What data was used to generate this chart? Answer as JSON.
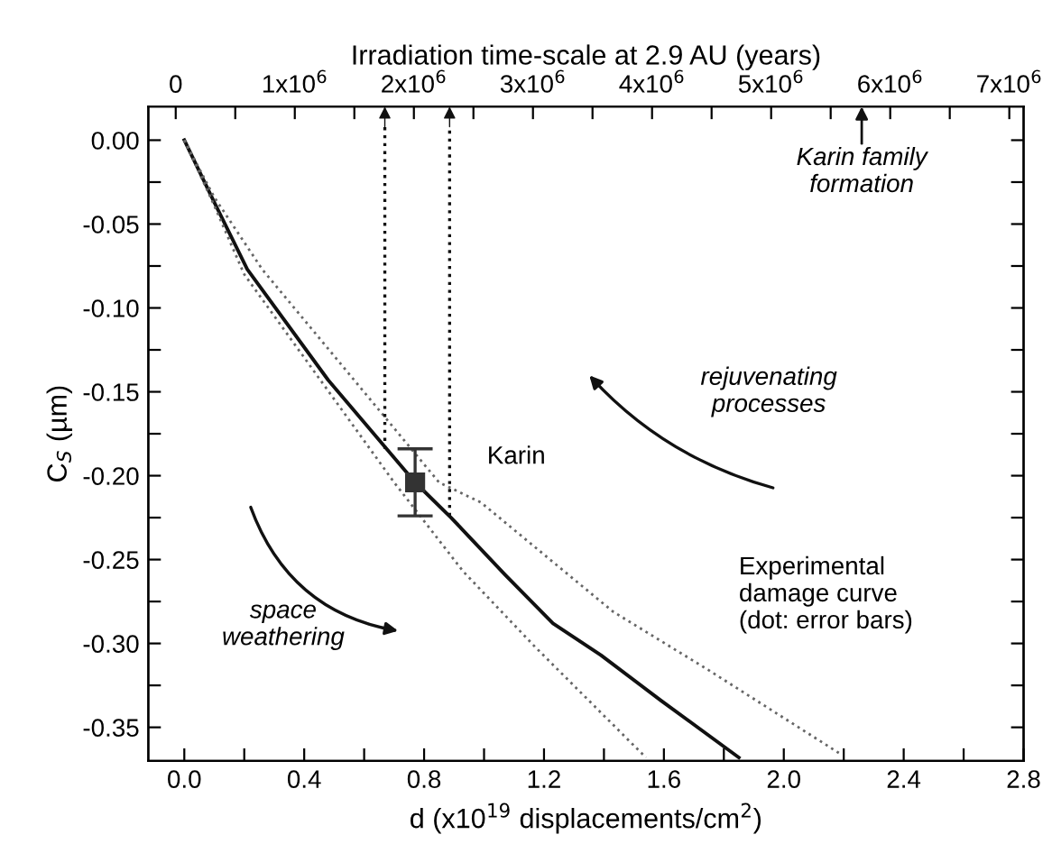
{
  "chart_data": {
    "type": "line",
    "xlabel": "d (x10$^{19}$ displacements/cm$^{2}$)",
    "ylabel": "C$_{S}$ (µm)",
    "x2label": "Irradiation time-scale at 2.9 AU (years)",
    "xlim": [
      -0.12,
      2.8
    ],
    "xticks": [
      {
        "value": 0,
        "label": "0.0"
      },
      {
        "value": 0.2,
        "label": null
      },
      0.4,
      {
        "value": 0.6,
        "label": null
      },
      0.8,
      {
        "value": 1.0,
        "label": null
      },
      1.2,
      {
        "value": 1.4,
        "label": null
      },
      1.6,
      {
        "value": 1.8,
        "label": null
      },
      {
        "value": 2,
        "label": "2.0"
      },
      {
        "value": 2.2,
        "label": null
      },
      2.4,
      {
        "value": 2.6,
        "label": null
      },
      2.8
    ],
    "x2lim": [
      -230000,
      7120000
    ],
    "x2ticks": [
      {
        "value": 0,
        "label": "0"
      },
      {
        "value": 500000,
        "label": null
      },
      {
        "value": 1000000,
        "label": "1x10$^{6}$"
      },
      {
        "value": 1500000,
        "label": null
      },
      {
        "value": 2000000,
        "label": "2x10$^{6}$"
      },
      {
        "value": 2500000,
        "label": null
      },
      {
        "value": 3000000,
        "label": "3x10$^{6}$"
      },
      {
        "value": 3500000,
        "label": null
      },
      {
        "value": 4000000,
        "label": "4x10$^{6}$"
      },
      {
        "value": 4500000,
        "label": null
      },
      {
        "value": 5000000,
        "label": "5x10$^{6}$"
      },
      {
        "value": 5500000,
        "label": null
      },
      {
        "value": 6000000,
        "label": "6x10$^{6}$"
      },
      {
        "value": 6500000,
        "label": null
      },
      {
        "value": 7000000,
        "label": "7x10$^{6}$"
      }
    ],
    "ylim": [
      -0.37,
      0.02
    ],
    "yticks": [
      {
        "value": 0.0,
        "label": "0.00"
      },
      {
        "value": -0.025,
        "label": null
      },
      {
        "value": -0.05,
        "label": "-0.05"
      },
      {
        "value": -0.075,
        "label": null
      },
      {
        "value": -0.1,
        "label": "-0.10"
      },
      {
        "value": -0.125,
        "label": null
      },
      {
        "value": -0.15,
        "label": "-0.15"
      },
      {
        "value": -0.175,
        "label": null
      },
      {
        "value": -0.2,
        "label": "-0.20"
      },
      {
        "value": -0.225,
        "label": null
      },
      {
        "value": -0.25,
        "label": "-0.25"
      },
      {
        "value": -0.275,
        "label": null
      },
      {
        "value": -0.3,
        "label": "-0.30"
      },
      {
        "value": -0.325,
        "label": null
      },
      {
        "value": -0.35,
        "label": "-0.35"
      }
    ],
    "grid": false,
    "legend": false,
    "series": [
      {
        "color": "#111111",
        "line_style": "solid",
        "x": [
          0.0,
          0.1,
          0.21,
          0.48,
          0.77,
          0.89,
          1.07,
          1.23,
          1.39,
          1.59,
          1.85
        ],
        "values": [
          0.0,
          -0.037,
          -0.077,
          -0.143,
          -0.204,
          -0.225,
          -0.259,
          -0.288,
          -0.307,
          -0.334,
          -0.368
        ]
      },
      {
        "color": "#666666",
        "line_style": "dotted",
        "x": [
          0.0,
          0.1,
          0.2,
          0.7,
          0.93,
          1.17,
          1.54
        ],
        "values": [
          0.0,
          -0.039,
          -0.08,
          -0.204,
          -0.257,
          -0.302,
          -0.368
        ]
      },
      {
        "color": "#666666",
        "line_style": "dotted",
        "x": [
          0.0,
          0.1,
          0.26,
          0.85,
          0.99,
          1.43,
          1.75,
          2.19
        ],
        "values": [
          0.0,
          -0.034,
          -0.077,
          -0.204,
          -0.216,
          -0.281,
          -0.316,
          -0.366
        ]
      },
      {
        "type": "scatter",
        "color": "#333333",
        "marker": "square",
        "x": [
          0.77
        ],
        "values": [
          -0.204
        ],
        "errors": [
          0.02
        ]
      }
    ],
    "ref_lines": [
      {
        "axis": "x2",
        "value": 1756000,
        "line_style": "dotted",
        "color": "#111111"
      },
      {
        "axis": "x2",
        "value": 2300000,
        "line_style": "dotted",
        "color": "#111111"
      }
    ],
    "annotations": [
      "Karin",
      "Karin family\nformation",
      "rejuvenating\nprocesses",
      "space\nweathering",
      "Experimental\ndamage curve\n(dot: error bars)"
    ]
  }
}
